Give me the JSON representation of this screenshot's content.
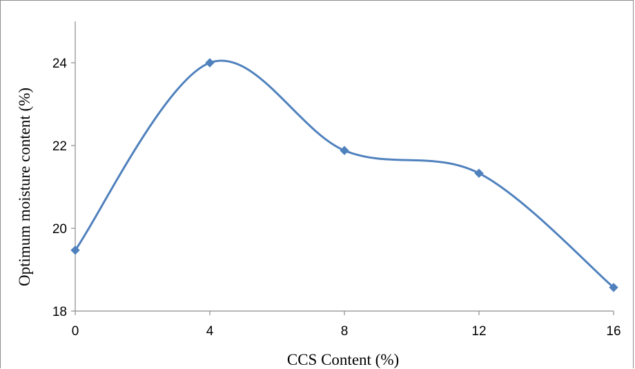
{
  "chart_data": {
    "type": "line",
    "title": "",
    "xlabel": "CCS Content (%)",
    "ylabel": "Optimum moisture content (%)",
    "x": [
      0,
      4,
      8,
      12,
      16
    ],
    "series": [
      {
        "values": [
          19.47,
          24.0,
          21.88,
          21.33,
          18.57
        ],
        "color": "#4f81bd",
        "marker": "diamond",
        "smooth": true
      }
    ],
    "xticks": [
      0,
      4,
      8,
      12,
      16
    ],
    "yticks": [
      18,
      20,
      22,
      24
    ],
    "xlim": [
      0,
      16
    ],
    "ylim": [
      18,
      25
    ],
    "grid": false,
    "legend": "none"
  }
}
